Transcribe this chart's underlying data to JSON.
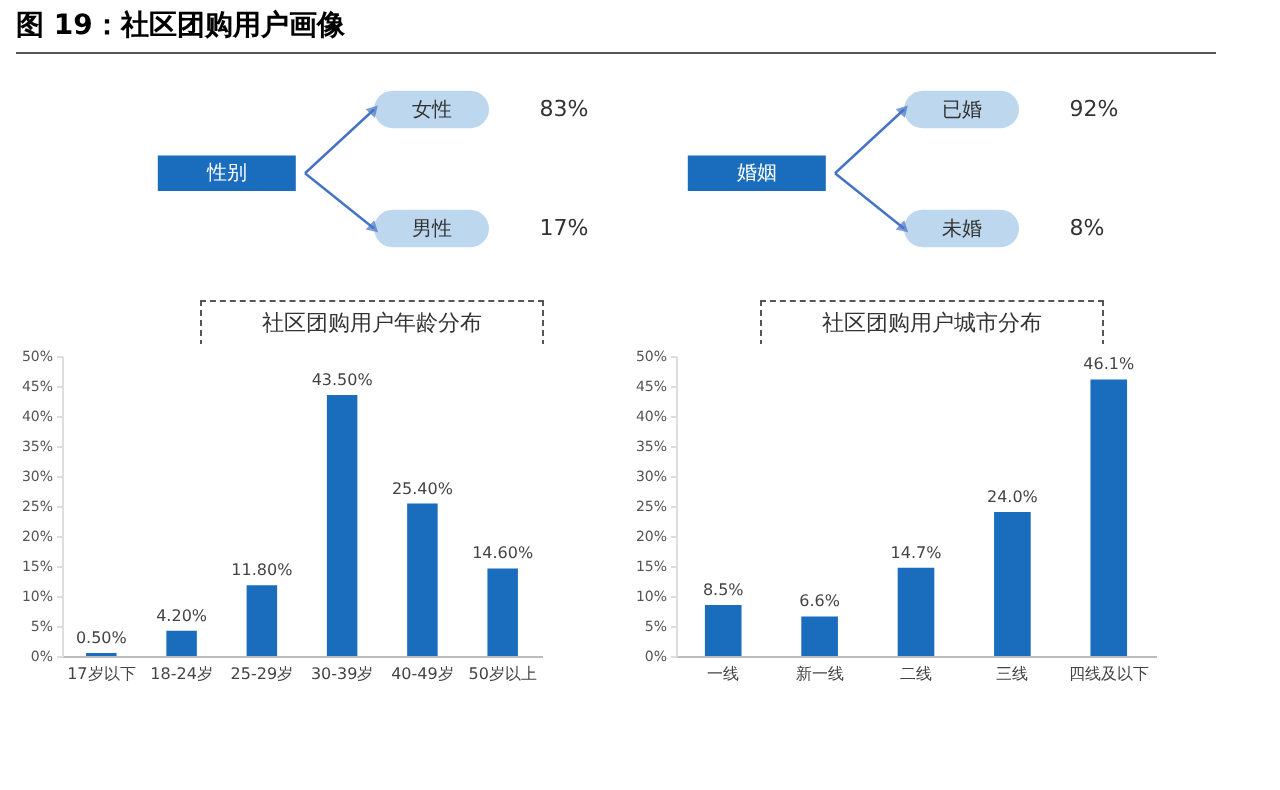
{
  "chart_data": [
    {
      "type": "other",
      "title": "性别",
      "annotations": [
        "图 19：社区团购用户画像"
      ],
      "categories": [
        "女性",
        "男性"
      ],
      "values": [
        83,
        17
      ],
      "value_labels": [
        "83%",
        "17%"
      ],
      "colors": [
        "#bdd7ee",
        "#bdd7ee"
      ]
    },
    {
      "type": "other",
      "title": "婚姻",
      "categories": [
        "已婚",
        "未婚"
      ],
      "values": [
        92,
        8
      ],
      "value_labels": [
        "92%",
        "8%"
      ],
      "colors": [
        "#bdd7ee",
        "#bdd7ee"
      ]
    },
    {
      "type": "bar",
      "title": "社区团购用户年龄分布",
      "categories": [
        "17岁以下",
        "18-24岁",
        "25-29岁",
        "30-39岁",
        "40-49岁",
        "50岁以上"
      ],
      "values": [
        0.5,
        4.2,
        11.8,
        43.5,
        25.4,
        14.6
      ],
      "value_labels": [
        "0.50%",
        "4.20%",
        "11.80%",
        "43.50%",
        "25.40%",
        "14.60%"
      ],
      "color": "#1a6dbd",
      "ylim": [
        0,
        50
      ],
      "yticks": [
        {
          "value": 0,
          "label": "0%"
        },
        {
          "value": 5,
          "label": "5%"
        },
        {
          "value": 10,
          "label": "10%"
        },
        {
          "value": 15,
          "label": "15%"
        },
        {
          "value": 20,
          "label": "20%"
        },
        {
          "value": 25,
          "label": "25%"
        },
        {
          "value": 30,
          "label": "30%"
        },
        {
          "value": 35,
          "label": "35%"
        },
        {
          "value": 40,
          "label": "40%"
        },
        {
          "value": 45,
          "label": "45%"
        },
        {
          "value": 50,
          "label": "50%"
        }
      ],
      "grid": false
    },
    {
      "type": "bar",
      "title": "社区团购用户城市分布",
      "categories": [
        "一线",
        "新一线",
        "二线",
        "三线",
        "四线及以下"
      ],
      "values": [
        8.5,
        6.6,
        14.7,
        24.0,
        46.1
      ],
      "value_labels": [
        "8.5%",
        "6.6%",
        "14.7%",
        "24.0%",
        "46.1%"
      ],
      "color": "#1a6dbd",
      "ylim": [
        0,
        50
      ],
      "yticks": [
        {
          "value": 0,
          "label": "0%"
        },
        {
          "value": 5,
          "label": "5%"
        },
        {
          "value": 10,
          "label": "10%"
        },
        {
          "value": 15,
          "label": "15%"
        },
        {
          "value": 20,
          "label": "20%"
        },
        {
          "value": 25,
          "label": "25%"
        },
        {
          "value": 30,
          "label": "30%"
        },
        {
          "value": 35,
          "label": "35%"
        },
        {
          "value": 40,
          "label": "40%"
        },
        {
          "value": 45,
          "label": "45%"
        },
        {
          "value": 50,
          "label": "50%"
        }
      ],
      "grid": false
    }
  ]
}
